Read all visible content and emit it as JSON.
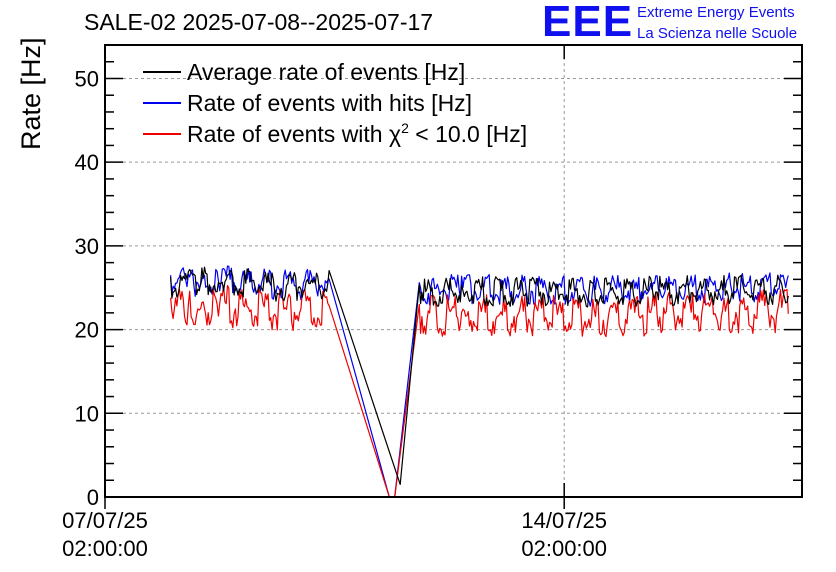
{
  "title": "SALE-02 2025-07-08--2025-07-17",
  "logo": {
    "mark": "EEE",
    "line1": "Extreme Energy Events",
    "line2": "La Scienza nelle Scuole",
    "color": "#1010ee"
  },
  "chart_data": {
    "type": "line",
    "ylabel": "Rate [Hz]",
    "xlabel": "",
    "ylim": [
      0,
      54
    ],
    "yticks": [
      0,
      10,
      20,
      30,
      40,
      50
    ],
    "xlim": [
      "2025-07-07 02:00:00",
      "2025-07-17 17:00:00"
    ],
    "xticks": [
      {
        "x": "2025-07-07 02:00:00",
        "line1": "07/07/25",
        "line2": "02:00:00"
      },
      {
        "x": "2025-07-14 02:00:00",
        "line1": "14/07/25",
        "line2": "02:00:00"
      }
    ],
    "grid": true,
    "legend_position": "top-left",
    "series": [
      {
        "name": "Average rate of events [Hz]",
        "legend_label": "Average rate of events [Hz]",
        "color": "#000000",
        "points": [
          [
            "2025-07-08 02:00:00",
            26.3
          ],
          [
            "2025-07-08 08:00:00",
            26.5
          ],
          [
            "2025-07-08 12:00:00",
            26.4
          ],
          [
            "2025-07-08 13:00:00",
            26.6
          ],
          [
            "2025-07-08 19:00:00",
            26.6
          ],
          [
            "2025-07-09 06:00:00",
            26.4
          ],
          [
            "2025-07-09 18:00:00",
            26.0
          ],
          [
            "2025-07-10 06:00:00",
            26.1
          ],
          [
            "2025-07-10 12:00:00",
            26.2
          ],
          [
            "2025-07-11 14:00:00",
            1.5
          ],
          [
            "2025-07-11 21:00:00",
            25.4
          ],
          [
            "2025-07-12 12:00:00",
            25.5
          ],
          [
            "2025-07-13 12:00:00",
            25.4
          ],
          [
            "2025-07-14 12:00:00",
            25.3
          ],
          [
            "2025-07-15 12:00:00",
            25.5
          ],
          [
            "2025-07-16 12:00:00",
            25.6
          ],
          [
            "2025-07-17 12:00:00",
            25.6
          ]
        ]
      },
      {
        "name": "Rate of events with hits [Hz]",
        "legend_label": "Rate of events with hits [Hz]",
        "color": "#0000ee",
        "points": [
          [
            "2025-07-08 02:00:00",
            26.5
          ],
          [
            "2025-07-08 08:00:00",
            26.8
          ],
          [
            "2025-07-08 12:00:00",
            26.6
          ],
          [
            "2025-07-08 13:00:00",
            26.6
          ],
          [
            "2025-07-08 19:00:00",
            26.9
          ],
          [
            "2025-07-09 06:00:00",
            26.6
          ],
          [
            "2025-07-09 18:00:00",
            26.2
          ],
          [
            "2025-07-10 06:00:00",
            26.3
          ],
          [
            "2025-07-10 12:00:00",
            26.4
          ],
          [
            "2025-07-11 10:00:00",
            0.0
          ],
          [
            "2025-07-11 12:00:00",
            0.0
          ],
          [
            "2025-07-11 21:00:00",
            25.6
          ],
          [
            "2025-07-12 12:00:00",
            25.8
          ],
          [
            "2025-07-13 12:00:00",
            25.6
          ],
          [
            "2025-07-14 12:00:00",
            25.5
          ],
          [
            "2025-07-15 12:00:00",
            25.7
          ],
          [
            "2025-07-16 12:00:00",
            25.9
          ],
          [
            "2025-07-17 12:00:00",
            25.9
          ]
        ]
      },
      {
        "name": "Rate of events with χ2 < 10.0 [Hz]",
        "legend_label": "Rate of events with χ",
        "legend_sup": "2",
        "legend_suffix": " < 10.0 [Hz]",
        "color": "#ee0000",
        "points": [
          [
            "2025-07-08 02:00:00",
            23.8
          ],
          [
            "2025-07-08 08:00:00",
            24.0
          ],
          [
            "2025-07-08 12:00:00",
            23.8
          ],
          [
            "2025-07-08 13:00:00",
            24.3
          ],
          [
            "2025-07-08 19:00:00",
            24.3
          ],
          [
            "2025-07-09 06:00:00",
            23.9
          ],
          [
            "2025-07-09 18:00:00",
            23.5
          ],
          [
            "2025-07-10 06:00:00",
            23.6
          ],
          [
            "2025-07-10 12:00:00",
            23.8
          ],
          [
            "2025-07-11 10:00:00",
            0.0
          ],
          [
            "2025-07-11 12:00:00",
            0.0
          ],
          [
            "2025-07-11 21:00:00",
            23.0
          ],
          [
            "2025-07-12 12:00:00",
            22.9
          ],
          [
            "2025-07-13 12:00:00",
            22.9
          ],
          [
            "2025-07-14 12:00:00",
            22.8
          ],
          [
            "2025-07-15 12:00:00",
            23.2
          ],
          [
            "2025-07-16 12:00:00",
            23.4
          ],
          [
            "2025-07-17 12:00:00",
            23.5
          ]
        ]
      }
    ]
  }
}
